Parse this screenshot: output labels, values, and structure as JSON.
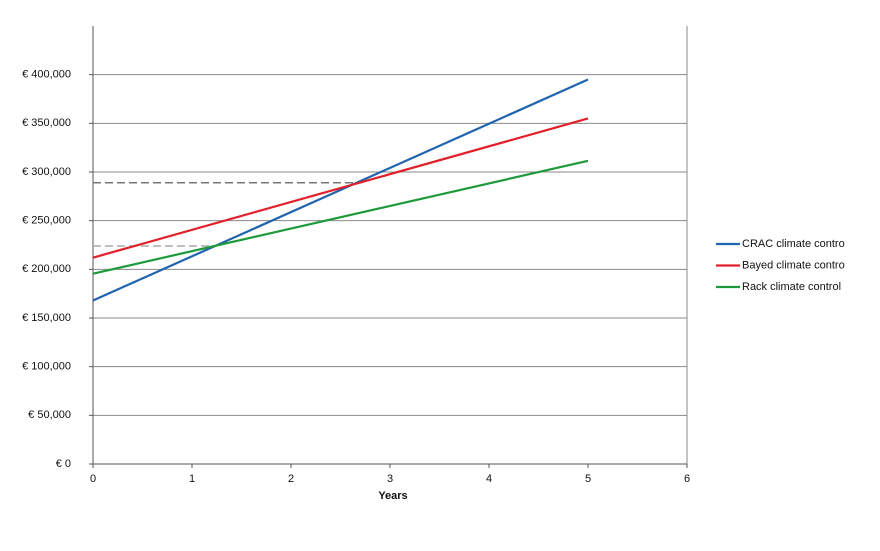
{
  "chart_data": {
    "type": "line",
    "x_label": "Years",
    "x": [
      0,
      5
    ],
    "series": [
      {
        "name": "CRAC climate contro",
        "color": "#1f64ad",
        "values": [
          168000,
          395000
        ]
      },
      {
        "name": "Bayed climate contro",
        "color": "#e2202a",
        "values": [
          212000,
          355000
        ]
      },
      {
        "name": "Rack climate control",
        "color": "#1e9a3c",
        "values": [
          195500,
          311500
        ]
      }
    ],
    "reference_lines": [
      {
        "y": 289000,
        "x": [
          0,
          2.72
        ],
        "color": "#777777"
      },
      {
        "y": 224000,
        "x": [
          0,
          1.25
        ],
        "color": "#aaaaaa"
      }
    ],
    "xlim": [
      0,
      6
    ],
    "xticks": [
      0,
      1,
      2,
      3,
      4,
      5,
      6
    ],
    "ylim": [
      0,
      450000
    ],
    "yticks": [
      {
        "value": 0,
        "label": "€ 0"
      },
      {
        "value": 50000,
        "label": "€ 50,000"
      },
      {
        "value": 100000,
        "label": "€ 100,000"
      },
      {
        "value": 150000,
        "label": "€ 150,000"
      },
      {
        "value": 200000,
        "label": "€ 200,000"
      },
      {
        "value": 250000,
        "label": "€ 250,000"
      },
      {
        "value": 300000,
        "label": "€ 300,000"
      },
      {
        "value": 350000,
        "label": "€ 350,000"
      },
      {
        "value": 400000,
        "label": "€ 400,000"
      }
    ],
    "grid": true,
    "legend": "right"
  }
}
